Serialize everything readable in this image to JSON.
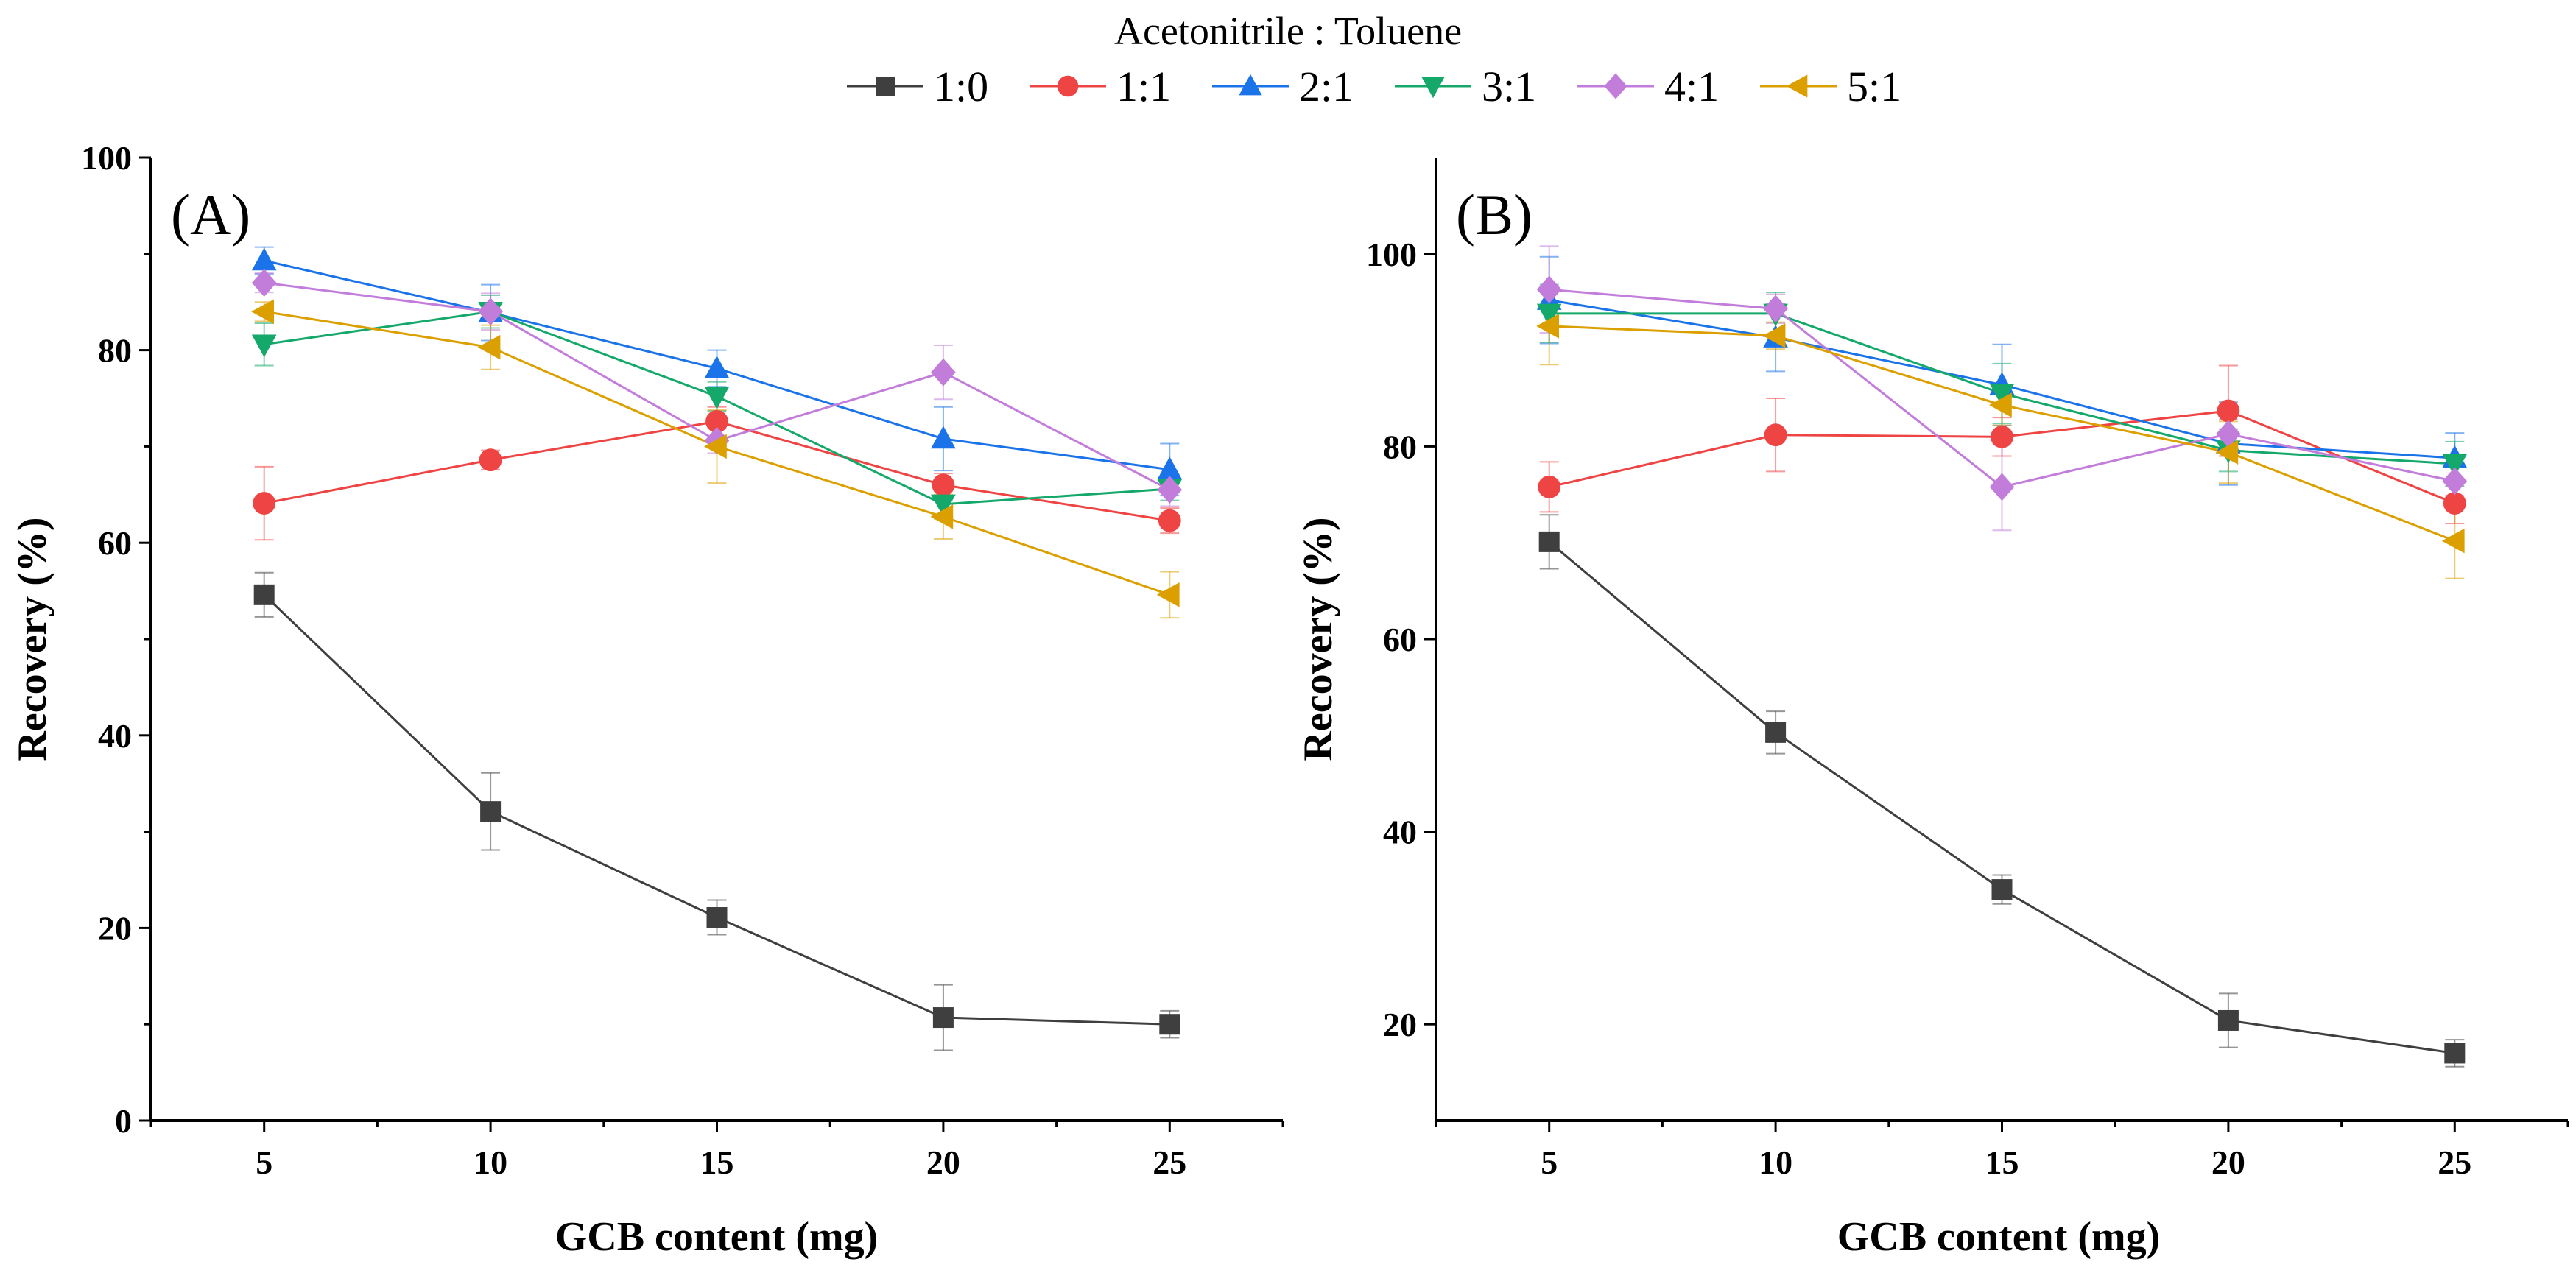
{
  "legend": {
    "title": "Acetonitrile : Toluene",
    "entries": [
      {
        "label": "1:0",
        "color": "#3f3f3f",
        "marker": "square"
      },
      {
        "label": "1:1",
        "color": "#ef4444",
        "marker": "circle"
      },
      {
        "label": "2:1",
        "color": "#1a73e8",
        "marker": "triangle-up"
      },
      {
        "label": "3:1",
        "color": "#14a86b",
        "marker": "triangle-down"
      },
      {
        "label": "4:1",
        "color": "#c27ddb",
        "marker": "diamond"
      },
      {
        "label": "5:1",
        "color": "#dba000",
        "marker": "triangle-left"
      }
    ]
  },
  "chart_data": [
    {
      "type": "line",
      "panel_label": "(A)",
      "xlabel": "GCB content (mg)",
      "ylabel": "Recovery (%)",
      "x": [
        5,
        10,
        15,
        20,
        25
      ],
      "xlim": [
        2.5,
        27.5
      ],
      "ylim": [
        0,
        100
      ],
      "yticks": [
        0,
        20,
        40,
        60,
        80,
        100
      ],
      "xticks": [
        5,
        10,
        15,
        20,
        25
      ],
      "series": [
        {
          "name": "1:0",
          "values": [
            54.6,
            32.1,
            21.1,
            10.7,
            10.0
          ],
          "errors": [
            2.3,
            4.0,
            1.8,
            3.4,
            1.4
          ]
        },
        {
          "name": "1:1",
          "values": [
            64.1,
            68.6,
            72.6,
            66.0,
            62.3
          ],
          "errors": [
            3.8,
            1.0,
            1.5,
            1.2,
            1.3
          ]
        },
        {
          "name": "2:1",
          "values": [
            89.3,
            83.9,
            78.1,
            70.8,
            67.6
          ],
          "errors": [
            1.4,
            2.9,
            1.9,
            3.3,
            2.7
          ]
        },
        {
          "name": "3:1",
          "values": [
            80.6,
            84.0,
            75.2,
            64.0,
            65.6
          ],
          "errors": [
            2.2,
            1.7,
            1.5,
            1.5,
            1.2
          ]
        },
        {
          "name": "4:1",
          "values": [
            87.0,
            84.0,
            70.6,
            77.7,
            65.5
          ],
          "errors": [
            1.0,
            1.9,
            1.3,
            2.8,
            1.7
          ]
        },
        {
          "name": "5:1",
          "values": [
            84.0,
            80.3,
            70.0,
            62.7,
            54.6
          ],
          "errors": [
            1.0,
            2.3,
            3.8,
            2.3,
            2.4
          ]
        }
      ]
    },
    {
      "type": "line",
      "panel_label": "(B)",
      "xlabel": "GCB content (mg)",
      "ylabel": "Recovery (%)",
      "x": [
        5,
        10,
        15,
        20,
        25
      ],
      "xlim": [
        2.5,
        27.5
      ],
      "ylim": [
        10,
        110
      ],
      "yticks": [
        20,
        40,
        60,
        80,
        100
      ],
      "xticks": [
        5,
        10,
        15,
        20,
        25
      ],
      "series": [
        {
          "name": "1:0",
          "values": [
            70.1,
            50.3,
            34.0,
            20.4,
            17.0
          ],
          "errors": [
            2.8,
            2.2,
            1.5,
            2.8,
            1.4
          ]
        },
        {
          "name": "1:1",
          "values": [
            75.8,
            81.2,
            81.0,
            83.7,
            74.1
          ],
          "errors": [
            2.6,
            3.8,
            2.0,
            4.7,
            2.1
          ]
        },
        {
          "name": "2:1",
          "values": [
            95.2,
            91.3,
            86.4,
            80.3,
            78.8
          ],
          "errors": [
            4.5,
            3.5,
            4.2,
            4.3,
            2.6
          ]
        },
        {
          "name": "3:1",
          "values": [
            93.8,
            93.8,
            85.5,
            79.6,
            78.2
          ],
          "errors": [
            3.0,
            2.2,
            3.1,
            2.2,
            2.3
          ]
        },
        {
          "name": "4:1",
          "values": [
            96.3,
            94.3,
            75.8,
            81.3,
            76.4
          ],
          "errors": [
            4.5,
            1.5,
            4.5,
            1.5,
            1.5
          ]
        },
        {
          "name": "5:1",
          "values": [
            92.5,
            91.5,
            84.3,
            79.4,
            70.2
          ],
          "errors": [
            4.0,
            1.4,
            2.1,
            3.2,
            3.9
          ]
        }
      ]
    }
  ]
}
